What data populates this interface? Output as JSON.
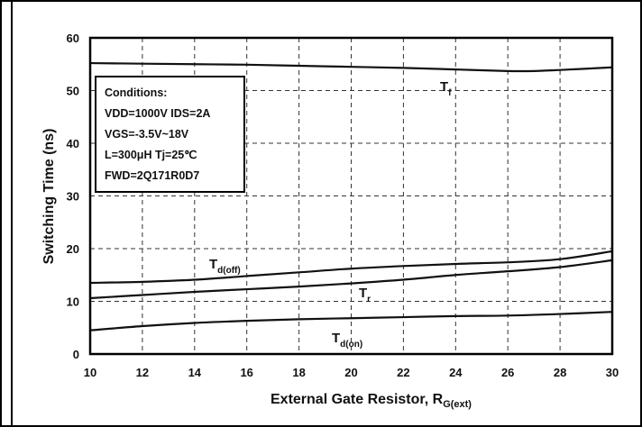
{
  "chart_data": {
    "type": "line",
    "xlabel": "External Gate Resistor, R",
    "xlabel_sub": "G(ext)",
    "ylabel": "Switching Time (ns)",
    "xlim": [
      10,
      30
    ],
    "ylim": [
      0,
      60
    ],
    "x_ticks": [
      "10",
      "12",
      "14",
      "16",
      "18",
      "20",
      "22",
      "24",
      "26",
      "28",
      "30"
    ],
    "y_ticks": [
      "0",
      "10",
      "20",
      "30",
      "40",
      "50",
      "60"
    ],
    "grid": true,
    "conditions": [
      "Conditions:",
      "VDD=1000V IDS=2A",
      "VGS=-3.5V~18V",
      "L=300μH   Tj=25℃",
      "FWD=2Q171R0D7"
    ],
    "series": [
      {
        "name": "T",
        "sub": "f",
        "x": [
          10,
          12,
          14,
          16,
          18,
          20,
          22,
          24,
          26,
          27,
          28,
          30
        ],
        "y": [
          55.2,
          55.1,
          55.0,
          54.9,
          54.7,
          54.5,
          54.3,
          54.0,
          53.7,
          53.7,
          53.9,
          54.4
        ]
      },
      {
        "name": "T",
        "sub": "d(off)",
        "x": [
          10,
          12,
          14,
          16,
          18,
          20,
          22,
          24,
          26,
          28,
          30
        ],
        "y": [
          13.5,
          13.7,
          14.1,
          14.8,
          15.5,
          16.2,
          16.7,
          17.1,
          17.4,
          18.0,
          19.5
        ]
      },
      {
        "name": "T",
        "sub": "r",
        "x": [
          10,
          12,
          14,
          16,
          18,
          20,
          22,
          24,
          26,
          28,
          30
        ],
        "y": [
          10.6,
          11.2,
          11.8,
          12.3,
          12.8,
          13.4,
          14.1,
          15.0,
          15.7,
          16.5,
          17.8
        ]
      },
      {
        "name": "T",
        "sub": "d(on)",
        "x": [
          10,
          12,
          14,
          16,
          18,
          20,
          22,
          24,
          26,
          28,
          30
        ],
        "y": [
          4.5,
          5.3,
          5.9,
          6.3,
          6.6,
          6.8,
          7.0,
          7.2,
          7.3,
          7.6,
          8.0
        ]
      }
    ]
  }
}
